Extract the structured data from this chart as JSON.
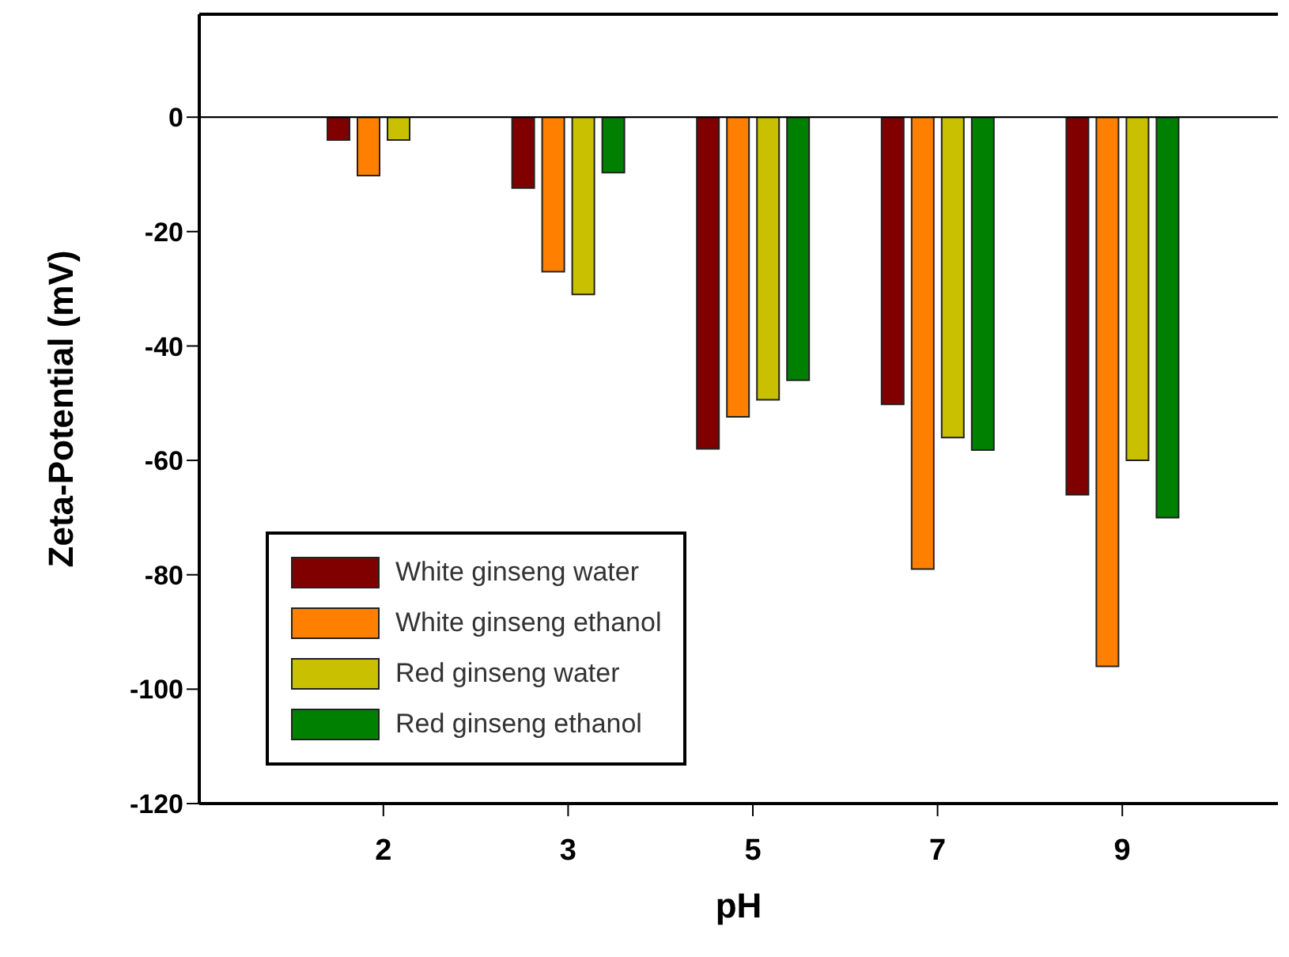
{
  "chart_data": {
    "type": "bar",
    "xlabel": "pH",
    "ylabel": "Zeta-Potential (mV)",
    "categories": [
      "2",
      "3",
      "5",
      "7",
      "9"
    ],
    "series": [
      {
        "name": "White ginseng water",
        "color": "#800000",
        "values": [
          -4,
          -12.4,
          -58,
          -50.2,
          -66
        ]
      },
      {
        "name": "White ginseng ethanol",
        "color": "#ff8000",
        "values": [
          -10.2,
          -27,
          -52.4,
          -79,
          -96
        ]
      },
      {
        "name": "Red ginseng water",
        "color": "#c8c000",
        "values": [
          -4,
          -31,
          -49.4,
          -56,
          -60
        ]
      },
      {
        "name": "Red ginseng ethanol",
        "color": "#008000",
        "values": [
          null,
          -9.7,
          -46,
          -58.2,
          -70
        ]
      }
    ],
    "ylim": [
      -120,
      18
    ],
    "yticks": [
      0,
      -20,
      -40,
      -60,
      -80,
      -100,
      -120
    ],
    "ref_lines": [
      {
        "axis": "y",
        "value": 0,
        "color": "#000000"
      }
    ],
    "grid": false,
    "legend": "bottom left"
  }
}
